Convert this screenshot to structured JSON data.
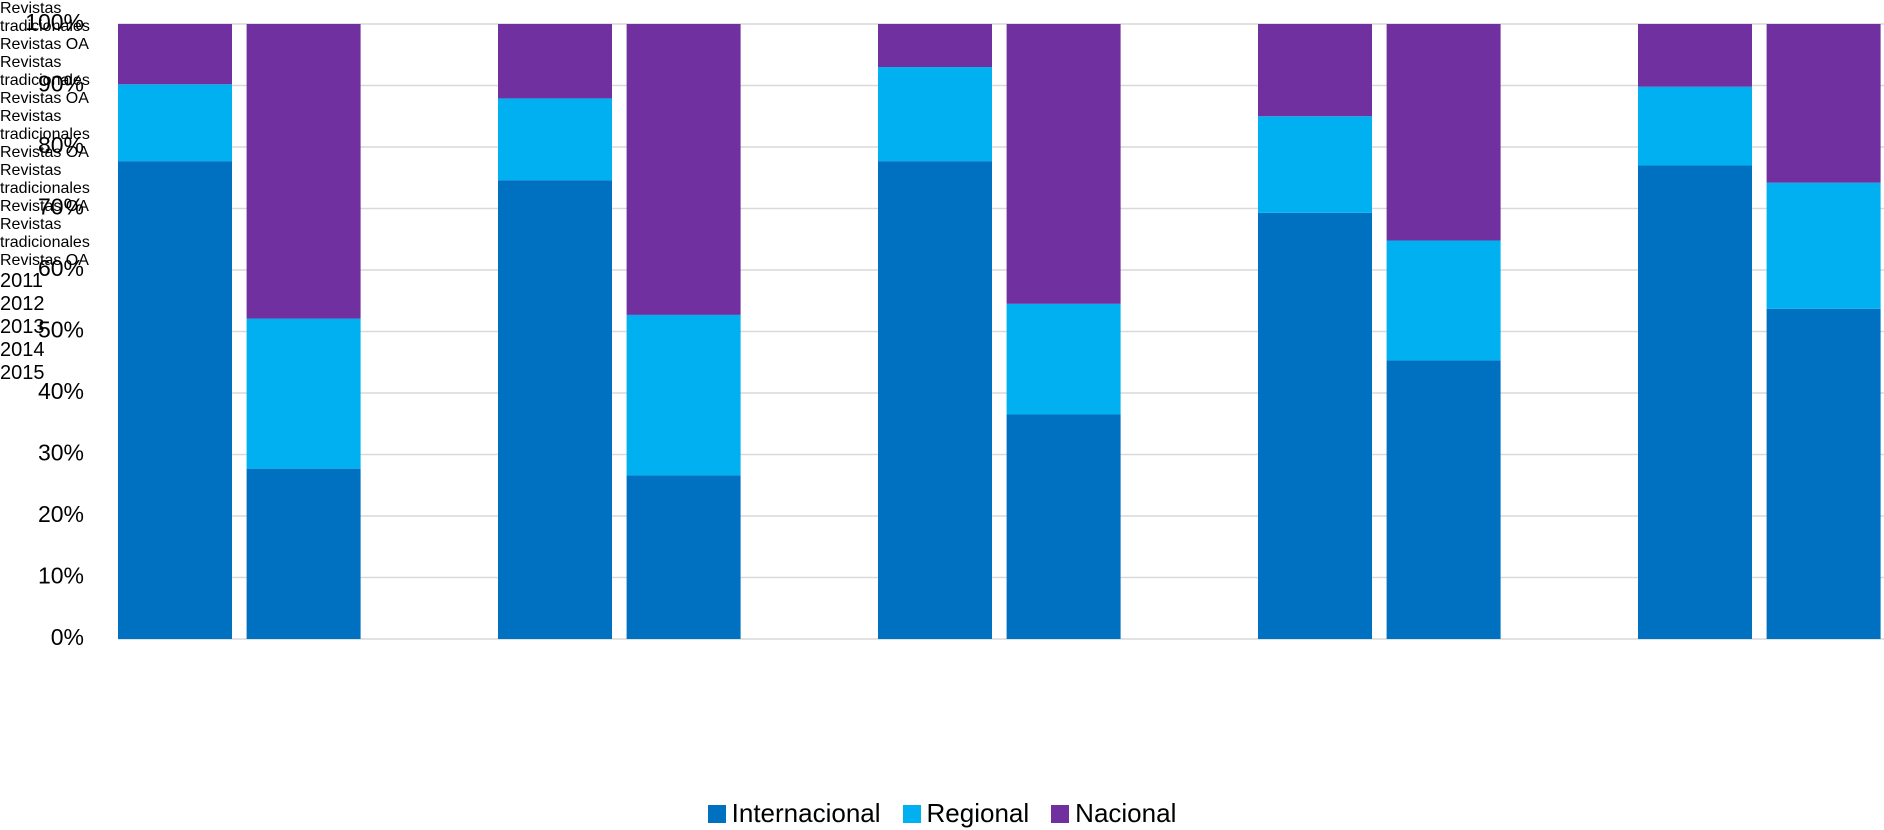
{
  "chart_data": {
    "type": "stacked_bar",
    "categories": [
      "Revistas tradicionales",
      "Revistas OA",
      "Revistas tradicionales",
      "Revistas OA",
      "Revistas tradicionales",
      "Revistas OA",
      "Revistas tradicionales",
      "Revistas OA",
      "Revistas tradicionales",
      "Revistas OA"
    ],
    "groups": [
      "2011",
      "2012",
      "2013",
      "2014",
      "2015"
    ],
    "series": [
      {
        "name": "Internacional",
        "color": "#0070c0",
        "values": [
          77.7,
          27.7,
          74.6,
          26.6,
          77.7,
          36.5,
          69.3,
          45.3,
          77.0,
          53.7
        ]
      },
      {
        "name": "Regional",
        "color": "#00b0f0",
        "values": [
          12.5,
          24.4,
          13.3,
          26.1,
          15.3,
          18.0,
          15.7,
          19.5,
          12.8,
          20.5
        ]
      },
      {
        "name": "Nacional",
        "color": "#7030a0",
        "values": [
          9.8,
          47.9,
          12.1,
          47.3,
          7.0,
          45.5,
          15.0,
          35.2,
          10.2,
          25.8
        ]
      }
    ],
    "ylim": [
      0,
      100
    ],
    "yticks": [
      {
        "value": 0,
        "label": "0%"
      },
      {
        "value": 10,
        "label": "10%"
      },
      {
        "value": 20,
        "label": "20%"
      },
      {
        "value": 30,
        "label": "30%"
      },
      {
        "value": 40,
        "label": "40%"
      },
      {
        "value": 50,
        "label": "50%"
      },
      {
        "value": 60,
        "label": "60%"
      },
      {
        "value": 70,
        "label": "70%"
      },
      {
        "value": 80,
        "label": "80%"
      },
      {
        "value": 90,
        "label": "90%"
      },
      {
        "value": 100,
        "label": "100%"
      }
    ],
    "grid": true,
    "legend": "bottom"
  }
}
